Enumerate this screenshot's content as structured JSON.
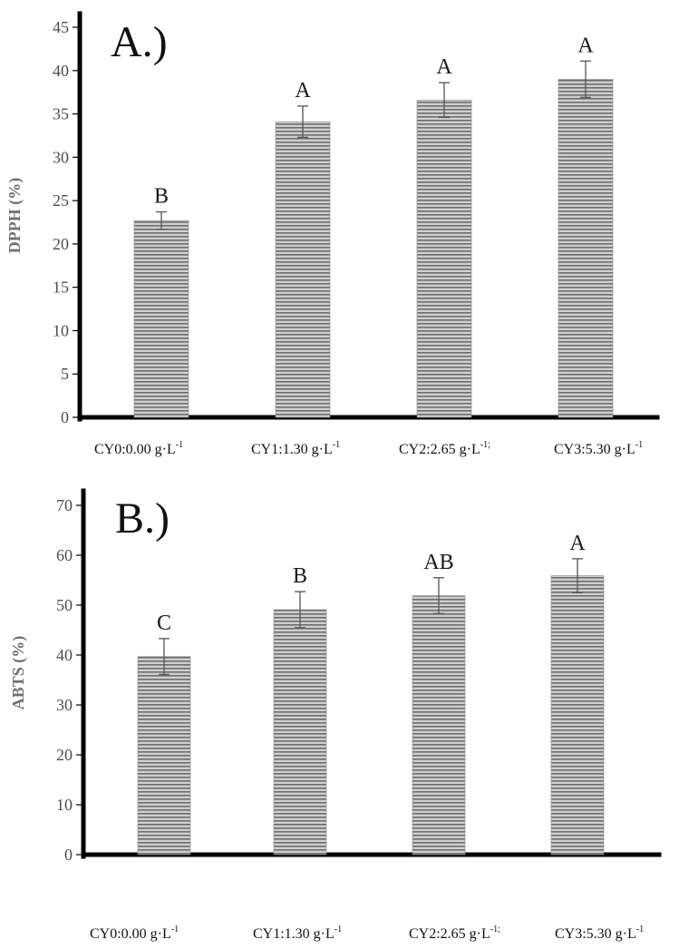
{
  "chart_data": [
    {
      "type": "bar",
      "panel_label": "A.)",
      "ylabel": "DPPH (%)",
      "ylim": [
        0,
        45
      ],
      "yticks": [
        0,
        5,
        10,
        15,
        20,
        25,
        30,
        35,
        40,
        45
      ],
      "categories": [
        {
          "main": "CY0:0.00 g·L",
          "sup": "-1"
        },
        {
          "main": "CY1:1.30 g·L",
          "sup": "-1"
        },
        {
          "main": "CY2:2.65 g·L",
          "sup": "-1;"
        },
        {
          "main": "CY3:5.30 g·L",
          "sup": "-1"
        }
      ],
      "values": [
        22.7,
        34.1,
        36.6,
        39.0
      ],
      "errors": [
        1.0,
        1.8,
        2.0,
        2.1
      ],
      "significance": [
        "B",
        "A",
        "A",
        "A"
      ],
      "bar_fill": "horizontal-hatch-gray",
      "grid": false
    },
    {
      "type": "bar",
      "panel_label": "B.)",
      "ylabel": "ABTS (%)",
      "ylim": [
        0,
        70
      ],
      "yticks": [
        0,
        10,
        20,
        30,
        40,
        50,
        60,
        70
      ],
      "categories": [
        {
          "main": "CY0:0.00 g·L",
          "sup": "-1"
        },
        {
          "main": "CY1:1.30 g·L",
          "sup": "-1"
        },
        {
          "main": "CY2:2.65 g·L",
          "sup": "-1;"
        },
        {
          "main": "CY3:5.30 g·L",
          "sup": "-1"
        }
      ],
      "values": [
        39.7,
        49.1,
        51.9,
        55.9
      ],
      "errors": [
        3.6,
        3.6,
        3.6,
        3.4
      ],
      "significance": [
        "C",
        "B",
        "AB",
        "A"
      ],
      "bar_fill": "horizontal-hatch-gray",
      "grid": false
    }
  ]
}
